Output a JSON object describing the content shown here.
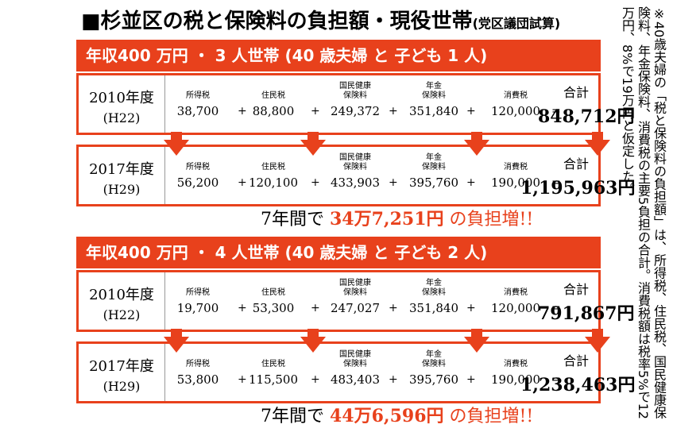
{
  "title": {
    "main": "■杉並区の税と保険料の負担額・現役世帯",
    "sub": "(党区議団試算)"
  },
  "note": "※40歳夫婦の「税と保険料の負担額」は、所得税、住民税、国民健康保険料、年金保険料、消費税の主要5負担の合計。消費税額は税率5%で12万円、8%で19万円と仮定した。",
  "labels": {
    "income_tax": "所得税",
    "resident_tax": "住民税",
    "nhi": "国民健康\n保険料",
    "nhi_l1": "国民健康",
    "nhi_l2": "保険料",
    "pension_l1": "年金",
    "pension_l2": "保険料",
    "consumption_tax": "消費税",
    "total": "合計"
  },
  "sections": [
    {
      "banner": "年収400 万円 ・ 3 人世帯 (40 歳夫婦 と 子ども 1 人)",
      "rows": [
        {
          "year": "2010年度",
          "era": "(H22)",
          "income_tax": "38,700",
          "resident_tax": "88,800",
          "nhi": "249,372",
          "pension": "351,840",
          "consumption_tax": "120,000",
          "total": "848,712円"
        },
        {
          "year": "2017年度",
          "era": "(H29)",
          "income_tax": "56,200",
          "resident_tax": "120,100",
          "nhi": "433,903",
          "pension": "395,760",
          "consumption_tax": "190,000",
          "total": "1,195,963円"
        }
      ],
      "increase": {
        "prefix": "7年間で",
        "amount": "34万7,251円",
        "suffix": "の負担増!!"
      }
    },
    {
      "banner": "年収400 万円 ・ 4 人世帯 (40 歳夫婦 と 子ども 2 人)",
      "rows": [
        {
          "year": "2010年度",
          "era": "(H22)",
          "income_tax": "19,700",
          "resident_tax": "53,300",
          "nhi": "247,027",
          "pension": "351,840",
          "consumption_tax": "120,000",
          "total": "791,867円"
        },
        {
          "year": "2017年度",
          "era": "(H29)",
          "income_tax": "53,800",
          "resident_tax": "115,500",
          "nhi": "483,403",
          "pension": "395,760",
          "consumption_tax": "190,000",
          "total": "1,238,463円"
        }
      ],
      "increase": {
        "prefix": "7年間で",
        "amount": "44万6,596円",
        "suffix": "の負担増!!"
      }
    }
  ],
  "operators": {
    "plus": "+",
    "equals": "="
  },
  "colors": {
    "accent": "#e8411c"
  }
}
